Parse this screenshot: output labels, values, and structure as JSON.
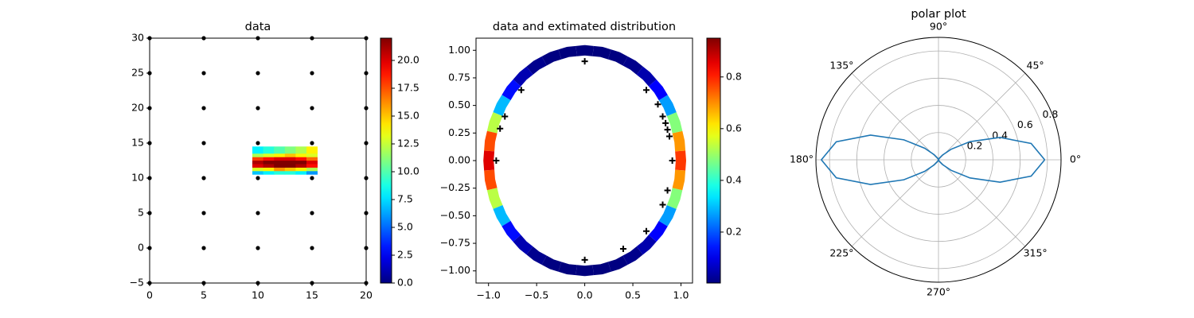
{
  "chart_data": [
    {
      "type": "scatter",
      "title": "data",
      "xlim": [
        0,
        20
      ],
      "ylim": [
        -5,
        30
      ],
      "xticks": [
        0,
        5,
        10,
        15,
        20
      ],
      "yticks": [
        {
          "value": -5,
          "label": "−5"
        },
        0,
        5,
        10,
        15,
        20,
        25,
        30
      ],
      "series": [
        {
          "marker": "o",
          "color": "#000000",
          "x": [
            0,
            5,
            10,
            15,
            20,
            0,
            5,
            10,
            15,
            20,
            0,
            5,
            10,
            15,
            20,
            0,
            5,
            10,
            15,
            20,
            0,
            5,
            10,
            15,
            20,
            0,
            5,
            10,
            15,
            20,
            0,
            5,
            10,
            15,
            20,
            0,
            5,
            10,
            15,
            20
          ],
          "y": [
            -5,
            -5,
            -5,
            -5,
            -5,
            0,
            0,
            0,
            0,
            0,
            5,
            5,
            5,
            5,
            5,
            10,
            10,
            10,
            10,
            10,
            15,
            15,
            15,
            15,
            15,
            20,
            20,
            20,
            20,
            20,
            25,
            25,
            25,
            25,
            25,
            30,
            30,
            30,
            30,
            30
          ]
        },
        {
          "marker": "s",
          "x": [
            10,
            11,
            12,
            13,
            14,
            15,
            10,
            11,
            12,
            13,
            14,
            15,
            10,
            11,
            12,
            13,
            14,
            15,
            10,
            11,
            12,
            13,
            14,
            15,
            10,
            11,
            12,
            13,
            14,
            15,
            10,
            11,
            12,
            13,
            14,
            15,
            10,
            11,
            12,
            13,
            14,
            15
          ],
          "y": [
            11,
            11,
            11,
            11,
            11,
            11,
            11.5,
            11.5,
            11.5,
            11.5,
            11.5,
            11.5,
            12,
            12,
            12,
            12,
            12,
            12,
            12.5,
            12.5,
            12.5,
            12.5,
            12.5,
            12.5,
            13,
            13,
            13,
            13,
            13,
            13,
            13.5,
            13.5,
            13.5,
            13.5,
            13.5,
            13.5,
            14,
            14,
            14,
            14,
            14,
            14
          ],
          "c": [
            7,
            8,
            9,
            9,
            8,
            6,
            13,
            14,
            16,
            15,
            14,
            12,
            20,
            21,
            22,
            22,
            21,
            19,
            21,
            22,
            22,
            22,
            22,
            20,
            18,
            19,
            20,
            20,
            19,
            17,
            12,
            13,
            14,
            15,
            14,
            13,
            8,
            9,
            10,
            11,
            12,
            14
          ]
        }
      ],
      "colorbar": {
        "cmap": "jet",
        "clim": [
          0,
          22
        ],
        "ticks": [
          {
            "value": 0,
            "label": "0.0"
          },
          2.5,
          {
            "value": 5,
            "label": "5.0"
          },
          7.5,
          {
            "value": 10,
            "label": "10.0"
          },
          12.5,
          {
            "value": 15,
            "label": "15.0"
          },
          17.5,
          {
            "value": 20,
            "label": "20.0"
          }
        ]
      }
    },
    {
      "type": "scatter",
      "title": "data and extimated distribution",
      "xlim": [
        -1.13,
        1.12
      ],
      "ylim": [
        -1.11,
        1.11
      ],
      "xticks": [
        {
          "value": -1,
          "label": "−1.0"
        },
        {
          "value": -0.5,
          "label": "−0.5"
        },
        {
          "value": 0,
          "label": "0.0"
        },
        0.5,
        {
          "value": 1,
          "label": "1.0"
        }
      ],
      "yticks": [
        {
          "value": -1,
          "label": "−1.00"
        },
        {
          "value": -0.75,
          "label": "−0.75"
        },
        {
          "value": -0.5,
          "label": "−0.50"
        },
        {
          "value": -0.25,
          "label": "−0.25"
        },
        {
          "value": 0,
          "label": "0.00"
        },
        0.25,
        {
          "value": 0.5,
          "label": "0.50"
        },
        0.75,
        {
          "value": 1,
          "label": "1.00"
        }
      ],
      "series": [
        {
          "marker": "-",
          "x": [
            1,
            0.985,
            0.94,
            0.866,
            0.766,
            0.643,
            0.5,
            0.342,
            0.174,
            0,
            -0.174,
            -0.342,
            -0.5,
            -0.643,
            -0.766,
            -0.866,
            -0.94,
            -0.985,
            -1,
            -0.985,
            -0.94,
            -0.866,
            -0.766,
            -0.643,
            -0.5,
            -0.342,
            -0.174,
            0,
            0.174,
            0.342,
            0.5,
            0.643,
            0.766,
            0.866,
            0.94,
            0.985
          ],
          "y": [
            0,
            0.174,
            0.342,
            0.5,
            0.643,
            0.766,
            0.866,
            0.94,
            0.985,
            1,
            0.985,
            0.94,
            0.866,
            0.766,
            0.643,
            0.5,
            0.342,
            0.174,
            0,
            -0.174,
            -0.342,
            -0.5,
            -0.643,
            -0.766,
            -0.866,
            -0.94,
            -0.985,
            -1,
            -0.985,
            -0.94,
            -0.866,
            -0.766,
            -0.643,
            -0.5,
            -0.342,
            -0.174
          ],
          "c": [
            0.78,
            0.691,
            0.481,
            0.267,
            0.12,
            0.045,
            0.014,
            0.004,
            0.001,
            0.001,
            0.001,
            0.004,
            0.016,
            0.049,
            0.132,
            0.294,
            0.531,
            0.762,
            0.86,
            0.762,
            0.531,
            0.294,
            0.132,
            0.049,
            0.016,
            0.004,
            0.001,
            0.001,
            0.001,
            0.004,
            0.014,
            0.045,
            0.12,
            0.267,
            0.481,
            0.691
          ]
        },
        {
          "marker": "+",
          "color": "#000000",
          "x": [
            0,
            -0.66,
            -0.83,
            -0.88,
            -0.92,
            0,
            0.4,
            0.64,
            0.81,
            0.86,
            0.91,
            0.88,
            0.86,
            0.84,
            0.81,
            0.76,
            0.64
          ],
          "y": [
            0.9,
            0.64,
            0.4,
            0.29,
            0,
            -0.9,
            -0.8,
            -0.64,
            -0.4,
            -0.27,
            0,
            0.22,
            0.28,
            0.34,
            0.4,
            0.51,
            0.64
          ]
        }
      ],
      "colorbar": {
        "cmap": "jet",
        "clim": [
          0.003,
          0.95
        ],
        "ticks": [
          0.2,
          0.4,
          0.6,
          0.8
        ]
      }
    },
    {
      "type": "polar",
      "title": "polar plot",
      "color": "#1f77b4",
      "theta": [
        0,
        10,
        20,
        30,
        40,
        50,
        60,
        70,
        80,
        90,
        100,
        110,
        120,
        130,
        140,
        150,
        160,
        170,
        180,
        190,
        200,
        210,
        220,
        230,
        240,
        250,
        260,
        270,
        280,
        290,
        300,
        310,
        320,
        330,
        340,
        350,
        360
      ],
      "r": [
        0.78,
        0.691,
        0.481,
        0.267,
        0.12,
        0.045,
        0.014,
        0.004,
        0.001,
        0.001,
        0.001,
        0.004,
        0.016,
        0.049,
        0.132,
        0.294,
        0.531,
        0.762,
        0.86,
        0.762,
        0.531,
        0.294,
        0.132,
        0.049,
        0.016,
        0.004,
        0.001,
        0.001,
        0.001,
        0.004,
        0.014,
        0.045,
        0.12,
        0.267,
        0.481,
        0.691,
        0.78
      ],
      "rlim": [
        0,
        0.9
      ],
      "rticks": [
        0.2,
        0.4,
        0.6,
        0.8
      ],
      "thetaticks": [
        {
          "value": 0,
          "label": "0°"
        },
        {
          "value": 45,
          "label": "45°"
        },
        {
          "value": 90,
          "label": "90°"
        },
        {
          "value": 135,
          "label": "135°"
        },
        {
          "value": 180,
          "label": "180°"
        },
        {
          "value": 225,
          "label": "225°"
        },
        {
          "value": 270,
          "label": "270°"
        },
        {
          "value": 315,
          "label": "315°"
        }
      ],
      "grid": true
    }
  ]
}
